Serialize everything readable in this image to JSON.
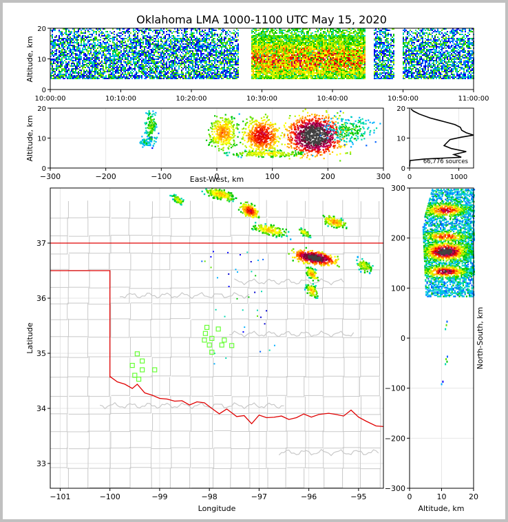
{
  "title": "Oklahoma LMA 1000-1100 UTC May 15, 2020",
  "colors": {
    "state_border": "#e00000",
    "county_lines": "#c8c8c8",
    "stations": "#66ff33",
    "grid": "#e6e6e6"
  },
  "chart_data": [
    {
      "id": "time_height",
      "type": "heatmap",
      "xlabel": "",
      "ylabel": "Altitude, km",
      "ylim": [
        0,
        20
      ],
      "yticks": [
        0,
        10,
        20
      ],
      "xticks": [
        "10:00:00",
        "10:10:00",
        "10:20:00",
        "10:30:00",
        "10:40:00",
        "10:50:00",
        "11:00:00"
      ],
      "data_gaps_minutes": [
        [
          26.7,
          28.3
        ],
        [
          44.6,
          45.7
        ],
        [
          48.6,
          49.9
        ]
      ],
      "dense_period_minutes": [
        28.3,
        44.6
      ]
    },
    {
      "id": "ew_altitude",
      "type": "heatmap",
      "xlabel": "East-West, km",
      "ylabel": "Altitude, km",
      "xlim": [
        -300,
        300
      ],
      "ylim": [
        0,
        20
      ],
      "xticks": [
        "−300",
        "−200",
        "−100",
        "0",
        "100",
        "200",
        "300"
      ],
      "yticks": [
        "0",
        "10",
        "20"
      ]
    },
    {
      "id": "altitude_histogram",
      "type": "line",
      "xlim": [
        0,
        1300
      ],
      "ylim": [
        0,
        20
      ],
      "xticks": [
        "0",
        "1000"
      ],
      "yticks": [
        "0",
        "10",
        "20"
      ],
      "sources_label": "66,776 sources",
      "profile": [
        [
          0,
          0.5
        ],
        [
          10,
          2.5
        ],
        [
          300,
          3.0
        ],
        [
          1050,
          3.6
        ],
        [
          900,
          4.5
        ],
        [
          1150,
          5.5
        ],
        [
          850,
          6.5
        ],
        [
          700,
          7.5
        ],
        [
          760,
          8.5
        ],
        [
          820,
          9.5
        ],
        [
          1050,
          10.3
        ],
        [
          1300,
          11.0
        ],
        [
          1150,
          11.8
        ],
        [
          1060,
          12.6
        ],
        [
          1030,
          13.6
        ],
        [
          920,
          14.5
        ],
        [
          700,
          15.5
        ],
        [
          420,
          16.7
        ],
        [
          200,
          18.0
        ],
        [
          80,
          19.0
        ],
        [
          30,
          19.7
        ]
      ]
    },
    {
      "id": "plan_view",
      "type": "scatter",
      "xlabel": "Longitude",
      "ylabel": "Latitude",
      "xlim": [
        -101.2,
        -94.5
      ],
      "ylim": [
        32.55,
        38.0
      ],
      "xticks": [
        "−101",
        "−100",
        "−99",
        "−98",
        "−97",
        "−96",
        "−95"
      ],
      "yticks": [
        "33",
        "34",
        "35",
        "36",
        "37"
      ],
      "stations": [
        [
          -98.05,
          35.47
        ],
        [
          -97.82,
          35.44
        ],
        [
          -98.08,
          35.36
        ],
        [
          -97.95,
          35.27
        ],
        [
          -98.1,
          35.24
        ],
        [
          -97.7,
          35.24
        ],
        [
          -98.0,
          35.15
        ],
        [
          -97.75,
          35.15
        ],
        [
          -97.55,
          35.14
        ],
        [
          -97.95,
          35.02
        ],
        [
          -99.45,
          34.99
        ],
        [
          -99.35,
          34.86
        ],
        [
          -99.55,
          34.78
        ],
        [
          -99.35,
          34.7
        ],
        [
          -99.1,
          34.7
        ],
        [
          -99.5,
          34.6
        ],
        [
          -99.42,
          34.53
        ]
      ]
    },
    {
      "id": "ns_altitude",
      "type": "heatmap",
      "xlabel": "Altitude, km",
      "ylabel": "North-South, km",
      "xlim": [
        0,
        20
      ],
      "ylim": [
        -300,
        300
      ],
      "xticks": [
        "0",
        "10",
        "20"
      ],
      "yticks": [
        "300",
        "200",
        "100",
        "0",
        "−100",
        "−200",
        "−300"
      ]
    }
  ]
}
